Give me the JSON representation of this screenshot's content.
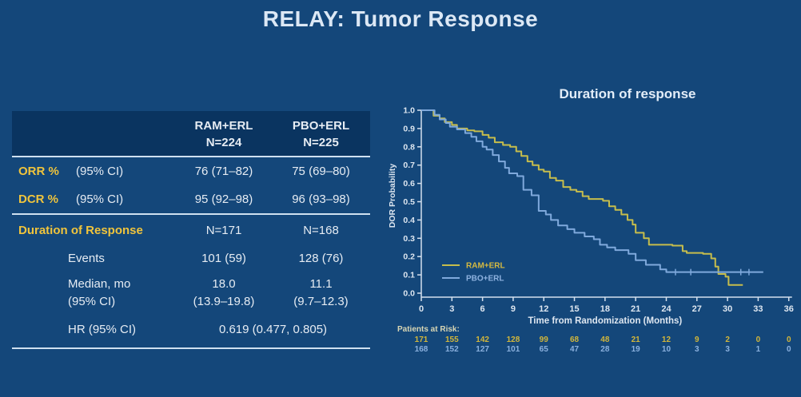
{
  "title": "RELAY: Tumor Response",
  "table": {
    "col_headers": [
      {
        "line1": "RAM+ERL",
        "line2": "N=224"
      },
      {
        "line1": "PBO+ERL",
        "line2": "N=225"
      }
    ],
    "rows": {
      "orr": {
        "label": "ORR %",
        "sub": "(95% CI)",
        "ram": "76 (71–82)",
        "pbo": "75 (69–80)"
      },
      "dcr": {
        "label": "DCR %",
        "sub": "(95% CI)",
        "ram": "95 (92–98)",
        "pbo": "96 (93–98)"
      },
      "dor": {
        "label": "Duration of Response",
        "ram": "N=171",
        "pbo": "N=168"
      },
      "events": {
        "label": "Events",
        "ram": "101 (59)",
        "pbo": "128 (76)"
      },
      "median": {
        "label1": "Median, mo",
        "label2": "(95% CI)",
        "ram1": "18.0",
        "ram2": "(13.9–19.8)",
        "pbo1": "11.1",
        "pbo2": "(9.7–12.3)"
      },
      "hr": {
        "label": "HR (95% CI)",
        "value": "0.619 (0.477, 0.805)"
      }
    }
  },
  "chart_data": {
    "type": "line",
    "subtype": "kaplan-meier-step",
    "title": "Duration of response",
    "xlabel": "Time from Randomization (Months)",
    "ylabel": "DOR Probability",
    "xlim": [
      0,
      36
    ],
    "ylim": [
      0.0,
      1.0
    ],
    "xticks": [
      0,
      3,
      6,
      9,
      12,
      15,
      18,
      21,
      24,
      27,
      30,
      33,
      36
    ],
    "yticks": [
      "0.0",
      "0.1",
      "0.2",
      "0.3",
      "0.4",
      "0.5",
      "0.6",
      "0.7",
      "0.8",
      "0.9",
      "1.0"
    ],
    "grid": false,
    "legend_position": "inside lower-left",
    "series": [
      {
        "name": "RAM+ERL",
        "color": "#c6bd4c",
        "legend_text_color": "#d6ba40",
        "step_points": [
          [
            0,
            1.0
          ],
          [
            0.9,
            1.0
          ],
          [
            1.2,
            0.97
          ],
          [
            1.8,
            0.955
          ],
          [
            2.3,
            0.935
          ],
          [
            3.0,
            0.92
          ],
          [
            3.5,
            0.9
          ],
          [
            4.5,
            0.89
          ],
          [
            5.2,
            0.885
          ],
          [
            6.0,
            0.865
          ],
          [
            6.6,
            0.85
          ],
          [
            7.2,
            0.825
          ],
          [
            8.0,
            0.81
          ],
          [
            8.7,
            0.8
          ],
          [
            9.3,
            0.775
          ],
          [
            9.8,
            0.75
          ],
          [
            10.4,
            0.72
          ],
          [
            10.9,
            0.7
          ],
          [
            11.5,
            0.675
          ],
          [
            12.0,
            0.665
          ],
          [
            12.6,
            0.63
          ],
          [
            13.2,
            0.615
          ],
          [
            13.9,
            0.58
          ],
          [
            14.6,
            0.565
          ],
          [
            15.2,
            0.555
          ],
          [
            15.8,
            0.53
          ],
          [
            16.4,
            0.515
          ],
          [
            17.8,
            0.505
          ],
          [
            18.4,
            0.475
          ],
          [
            19.0,
            0.455
          ],
          [
            19.6,
            0.43
          ],
          [
            20.2,
            0.4
          ],
          [
            20.7,
            0.375
          ],
          [
            21.0,
            0.33
          ],
          [
            21.8,
            0.3
          ],
          [
            22.3,
            0.265
          ],
          [
            24.6,
            0.26
          ],
          [
            25.6,
            0.23
          ],
          [
            26.0,
            0.22
          ],
          [
            27.6,
            0.215
          ],
          [
            28.4,
            0.19
          ],
          [
            28.8,
            0.145
          ],
          [
            29.1,
            0.105
          ],
          [
            29.8,
            0.09
          ],
          [
            30.1,
            0.045
          ],
          [
            31.5,
            0.045
          ]
        ],
        "censor_months": [],
        "censor_prob": 0.045
      },
      {
        "name": "PBO+ERL",
        "color": "#7fa9dc",
        "legend_text_color": "#8fb3e0",
        "step_points": [
          [
            0,
            1.0
          ],
          [
            0.9,
            1.0
          ],
          [
            1.3,
            0.975
          ],
          [
            1.8,
            0.95
          ],
          [
            2.4,
            0.93
          ],
          [
            2.8,
            0.91
          ],
          [
            3.5,
            0.895
          ],
          [
            4.3,
            0.875
          ],
          [
            4.9,
            0.855
          ],
          [
            5.4,
            0.83
          ],
          [
            6.0,
            0.8
          ],
          [
            6.4,
            0.785
          ],
          [
            7.0,
            0.755
          ],
          [
            7.6,
            0.72
          ],
          [
            8.2,
            0.685
          ],
          [
            8.6,
            0.655
          ],
          [
            9.4,
            0.64
          ],
          [
            10.0,
            0.565
          ],
          [
            10.8,
            0.535
          ],
          [
            11.5,
            0.45
          ],
          [
            12.2,
            0.43
          ],
          [
            12.7,
            0.4
          ],
          [
            13.4,
            0.37
          ],
          [
            14.3,
            0.35
          ],
          [
            15.0,
            0.33
          ],
          [
            16.0,
            0.31
          ],
          [
            16.9,
            0.295
          ],
          [
            17.5,
            0.265
          ],
          [
            18.2,
            0.25
          ],
          [
            19.0,
            0.235
          ],
          [
            20.3,
            0.215
          ],
          [
            21.0,
            0.18
          ],
          [
            22.0,
            0.155
          ],
          [
            23.4,
            0.13
          ],
          [
            24.0,
            0.115
          ],
          [
            33.5,
            0.115
          ]
        ],
        "censor_months": [
          24.9,
          26.4,
          31.3,
          32.1
        ],
        "censor_prob": 0.115
      }
    ],
    "at_risk": {
      "label": "Patients at Risk:",
      "label_color": "#d8d6b4",
      "rows": [
        {
          "name": "RAM+ERL",
          "color": "#d2b63a",
          "values": [
            171,
            155,
            142,
            128,
            99,
            68,
            48,
            21,
            12,
            9,
            2,
            0,
            0
          ]
        },
        {
          "name": "PBO+ERL",
          "color": "#8ab0de",
          "values": [
            168,
            152,
            127,
            101,
            65,
            47,
            28,
            19,
            10,
            3,
            3,
            1,
            0
          ]
        }
      ]
    }
  },
  "colors": {
    "background": "#14477a",
    "table_header_bg": "#0a3460",
    "rule_line": "#cfe0f0",
    "accent_yellow": "#f0c43c",
    "text_light": "#e6ecf3",
    "axis": "#d4e0ee",
    "chart_text": "#dde6f0"
  }
}
